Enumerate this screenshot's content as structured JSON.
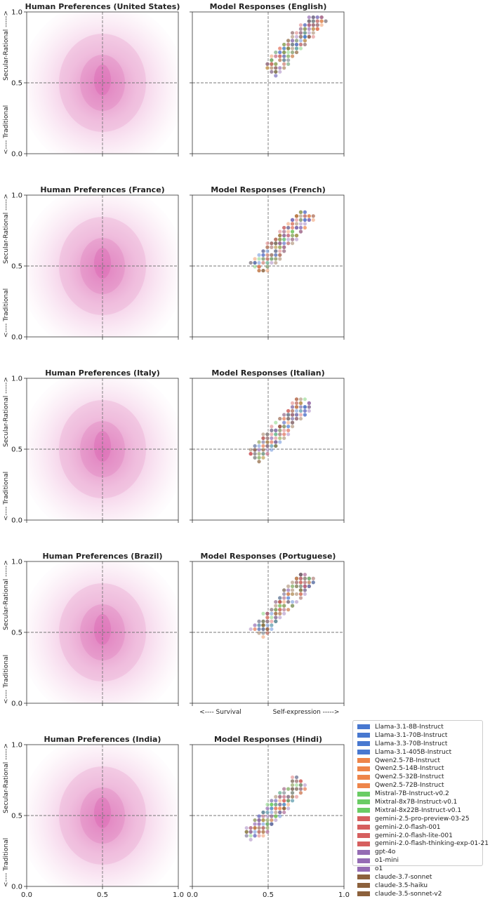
{
  "chart_data": {
    "type": "scatter",
    "axis_range": [
      0,
      1
    ],
    "x_ticks": [
      "0.0",
      "0.5",
      "1.0"
    ],
    "y_ticks": [
      "0.0",
      "0.5",
      "1.0"
    ],
    "y_label_top": "Secular-Rational ----->",
    "y_label_bottom": "<---- Traditional",
    "x_label_left": "<---- Survival",
    "x_label_right": "Self-expression ----->",
    "reference_lines": {
      "x": 0.5,
      "y": 0.5
    },
    "rows": [
      {
        "human": {
          "title": "Human Preferences (United States)",
          "density_center": [
            0.5,
            0.5
          ]
        },
        "model": {
          "title": "Model Responses (English)",
          "cluster_center": [
            0.68,
            0.78
          ]
        }
      },
      {
        "human": {
          "title": "Human Preferences (France)",
          "density_center": [
            0.5,
            0.5
          ]
        },
        "model": {
          "title": "Model Responses (French)",
          "cluster_center": [
            0.6,
            0.68
          ]
        }
      },
      {
        "human": {
          "title": "Human Preferences (Italy)",
          "density_center": [
            0.5,
            0.5
          ]
        },
        "model": {
          "title": "Model Responses (Italian)",
          "cluster_center": [
            0.58,
            0.64
          ]
        }
      },
      {
        "human": {
          "title": "Human Preferences (Brazil)",
          "density_center": [
            0.5,
            0.5
          ]
        },
        "model": {
          "title": "Model Responses (Portuguese)",
          "cluster_center": [
            0.6,
            0.7
          ]
        }
      },
      {
        "human": {
          "title": "Human Preferences (India)",
          "density_center": [
            0.5,
            0.5
          ]
        },
        "model": {
          "title": "Model Responses (Hindi)",
          "cluster_center": [
            0.55,
            0.55
          ]
        }
      }
    ],
    "legend": [
      {
        "label": "Llama-3.1-8B-Instruct",
        "color": "#4878d0"
      },
      {
        "label": "Llama-3.1-70B-Instruct",
        "color": "#4878d0"
      },
      {
        "label": "Llama-3.3-70B-Instruct",
        "color": "#4878d0"
      },
      {
        "label": "Llama-3.1-405B-Instruct",
        "color": "#4878d0"
      },
      {
        "label": "Qwen2.5-7B-Instruct",
        "color": "#ee854a"
      },
      {
        "label": "Qwen2.5-14B-Instruct",
        "color": "#ee854a"
      },
      {
        "label": "Qwen2.5-32B-Instruct",
        "color": "#ee854a"
      },
      {
        "label": "Qwen2.5-72B-Instruct",
        "color": "#ee854a"
      },
      {
        "label": "Mistral-7B-Instruct-v0.2",
        "color": "#6acc64"
      },
      {
        "label": "Mixtral-8x7B-Instruct-v0.1",
        "color": "#6acc64"
      },
      {
        "label": "Mixtral-8x22B-Instruct-v0.1",
        "color": "#6acc64"
      },
      {
        "label": "gemini-2.5-pro-preview-03-25",
        "color": "#d65f5f"
      },
      {
        "label": "gemini-2.0-flash-001",
        "color": "#d65f5f"
      },
      {
        "label": "gemini-2.0-flash-lite-001",
        "color": "#d65f5f"
      },
      {
        "label": "gemini-2.0-flash-thinking-exp-01-21",
        "color": "#d65f5f"
      },
      {
        "label": "gpt-4o",
        "color": "#956cb4"
      },
      {
        "label": "o1-mini",
        "color": "#956cb4"
      },
      {
        "label": "o1",
        "color": "#956cb4"
      },
      {
        "label": "claude-3.7-sonnet",
        "color": "#8c613c"
      },
      {
        "label": "claude-3.5-haiku",
        "color": "#8c613c"
      },
      {
        "label": "claude-3.5-sonnet-v2",
        "color": "#8c613c"
      }
    ]
  }
}
